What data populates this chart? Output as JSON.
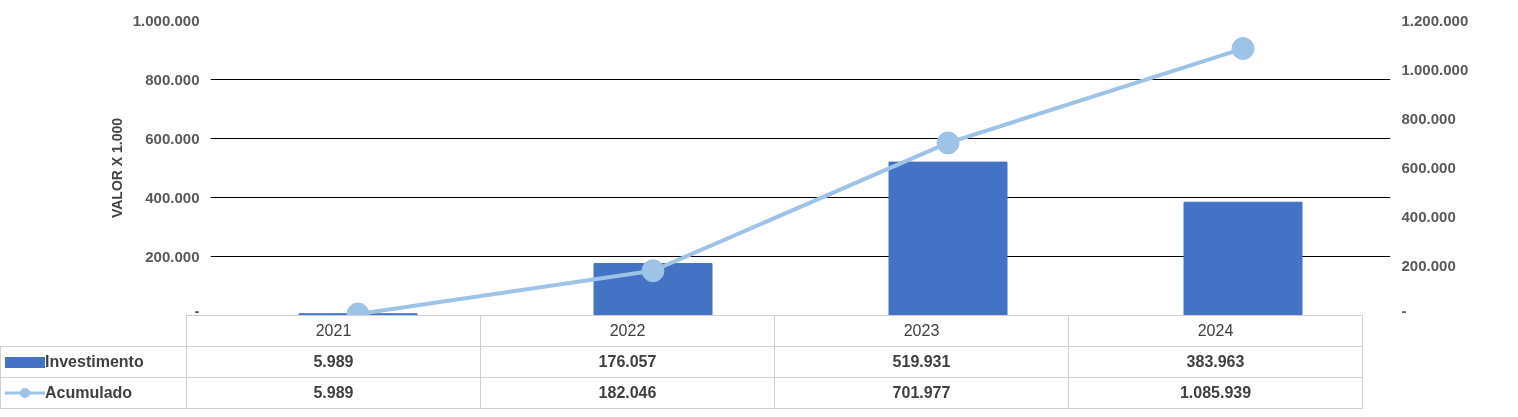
{
  "chart_data": {
    "type": "bar",
    "ylabel": "VALOR X 1.000",
    "categories": [
      "2021",
      "2022",
      "2023",
      "2024"
    ],
    "series": [
      {
        "name": "Investimento",
        "color": "#4472c4",
        "values": [
          5989,
          176057,
          519931,
          383963
        ],
        "value_labels": [
          "5.989",
          "176.057",
          "519.931",
          "383.963"
        ]
      },
      {
        "name": "Acumulado",
        "type": "line",
        "axis": "y2",
        "color": "#9dc3e6",
        "marker": "circle",
        "values": [
          5989,
          182046,
          701977,
          1085939
        ],
        "value_labels": [
          "5.989",
          "182.046",
          "701.977",
          "1.085.939"
        ]
      }
    ],
    "ylim": [
      0,
      1000000
    ],
    "yticks": [
      {
        "value": 0,
        "label": "-"
      },
      {
        "value": 200000,
        "label": "200.000"
      },
      {
        "value": 400000,
        "label": "400.000"
      },
      {
        "value": 600000,
        "label": "600.000"
      },
      {
        "value": 800000,
        "label": "800.000"
      },
      {
        "value": 1000000,
        "label": "1.000.000"
      }
    ],
    "y2lim": [
      0,
      1200000
    ],
    "y2ticks": [
      {
        "value": 0,
        "label": "-"
      },
      {
        "value": 200000,
        "label": "200.000"
      },
      {
        "value": 400000,
        "label": "400.000"
      },
      {
        "value": 600000,
        "label": "600.000"
      },
      {
        "value": 800000,
        "label": "800.000"
      },
      {
        "value": 1000000,
        "label": "1.000.000"
      },
      {
        "value": 1200000,
        "label": "1.200.000"
      }
    ],
    "grid": "y",
    "legend": "bottom"
  }
}
